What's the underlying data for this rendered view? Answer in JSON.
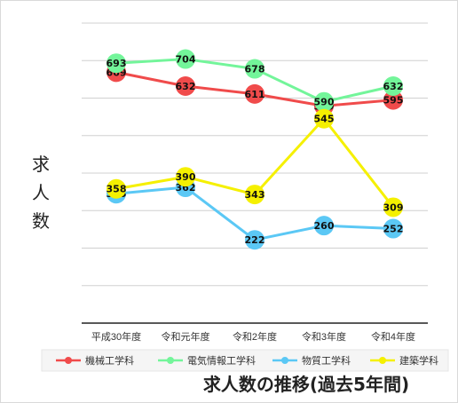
{
  "chart_data": {
    "type": "line",
    "title": "求人数の推移(過去5年間)",
    "ylabel": "求人数",
    "xlabel": "",
    "categories": [
      "平成30年度",
      "令和元年度",
      "令和2年度",
      "令和3年度",
      "令和4年度"
    ],
    "ylim": [
      0,
      800
    ],
    "grid": true,
    "legend_position": "bottom",
    "series": [
      {
        "name": "機械工学科",
        "color": "#f04b4b",
        "values": [
          669,
          632,
          611,
          579,
          595
        ]
      },
      {
        "name": "電気情報工学科",
        "color": "#73f59a",
        "values": [
          693,
          704,
          678,
          590,
          632
        ]
      },
      {
        "name": "物質工学科",
        "color": "#5bc8f5",
        "values": [
          345,
          362,
          222,
          260,
          252
        ]
      },
      {
        "name": "建築学科",
        "color": "#f5f000",
        "values": [
          358,
          390,
          343,
          545,
          309
        ]
      }
    ]
  }
}
